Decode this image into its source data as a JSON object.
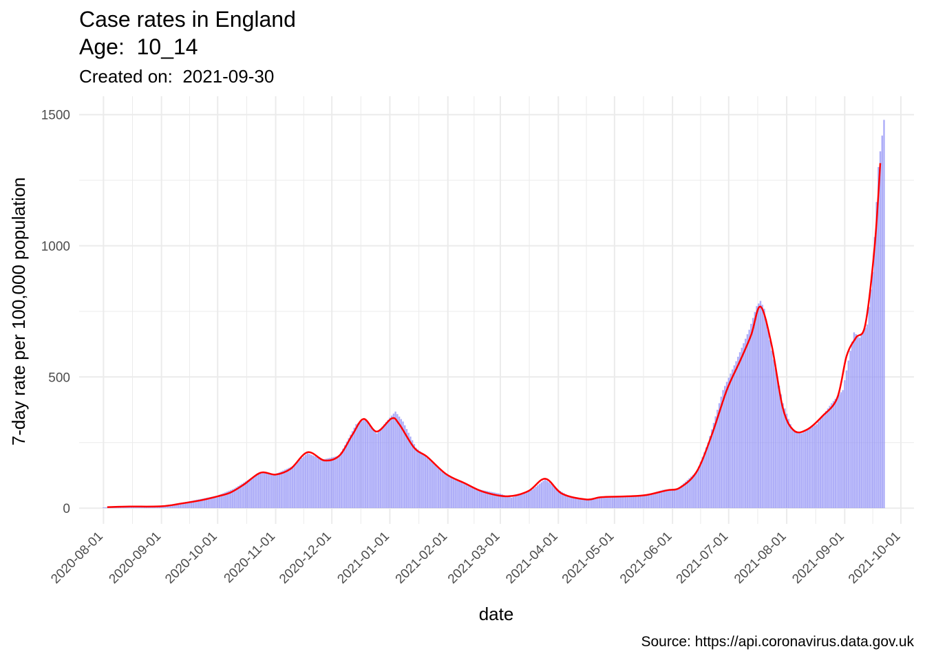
{
  "header": {
    "title_line1": "Case rates in England",
    "title_line2": "Age:  10_14",
    "subtitle": "Created on:  2021-09-30"
  },
  "caption": "Source: https://api.coronavirus.data.gov.uk",
  "colors": {
    "bars": "#8f8ff5",
    "smooth_line": "#ff0000",
    "grid": "#ebebeb"
  },
  "chart_data": {
    "type": "bar",
    "xlabel": "date",
    "ylabel": "7-day rate per 100,000 population",
    "ylim": [
      -60,
      1570
    ],
    "xlim": [
      "2020-07-19",
      "2021-10-08"
    ],
    "y_ticks": [
      0,
      500,
      1000,
      1500
    ],
    "x_ticks": [
      "2020-08-01",
      "2020-09-01",
      "2020-10-01",
      "2020-11-01",
      "2020-12-01",
      "2021-01-01",
      "2021-02-01",
      "2021-03-01",
      "2021-04-01",
      "2021-05-01",
      "2021-06-01",
      "2021-07-01",
      "2021-08-01",
      "2021-09-01",
      "2021-10-01"
    ],
    "grid": true,
    "legend": "none",
    "bar_anchors": [
      [
        "2020-08-01",
        3
      ],
      [
        "2020-08-20",
        5
      ],
      [
        "2020-09-01",
        8
      ],
      [
        "2020-09-15",
        25
      ],
      [
        "2020-10-01",
        48
      ],
      [
        "2020-10-10",
        75
      ],
      [
        "2020-10-20",
        120
      ],
      [
        "2020-10-25",
        135
      ],
      [
        "2020-11-01",
        130
      ],
      [
        "2020-11-10",
        160
      ],
      [
        "2020-11-18",
        210
      ],
      [
        "2020-11-26",
        185
      ],
      [
        "2020-12-05",
        200
      ],
      [
        "2020-12-14",
        320
      ],
      [
        "2020-12-19",
        340
      ],
      [
        "2020-12-25",
        285
      ],
      [
        "2021-01-01",
        345
      ],
      [
        "2021-01-04",
        368
      ],
      [
        "2021-01-08",
        330
      ],
      [
        "2021-01-15",
        230
      ],
      [
        "2021-01-22",
        185
      ],
      [
        "2021-02-01",
        125
      ],
      [
        "2021-02-15",
        75
      ],
      [
        "2021-03-01",
        55
      ],
      [
        "2021-03-07",
        40
      ],
      [
        "2021-03-18",
        70
      ],
      [
        "2021-03-25",
        110
      ],
      [
        "2021-04-01",
        70
      ],
      [
        "2021-04-08",
        40
      ],
      [
        "2021-04-16",
        35
      ],
      [
        "2021-04-25",
        42
      ],
      [
        "2021-05-08",
        45
      ],
      [
        "2021-05-18",
        50
      ],
      [
        "2021-05-27",
        70
      ],
      [
        "2021-06-04",
        75
      ],
      [
        "2021-06-14",
        140
      ],
      [
        "2021-06-20",
        250
      ],
      [
        "2021-06-28",
        450
      ],
      [
        "2021-07-05",
        560
      ],
      [
        "2021-07-12",
        680
      ],
      [
        "2021-07-16",
        770
      ],
      [
        "2021-07-18",
        790
      ],
      [
        "2021-07-20",
        760
      ],
      [
        "2021-07-24",
        600
      ],
      [
        "2021-07-30",
        400
      ],
      [
        "2021-08-04",
        300
      ],
      [
        "2021-08-09",
        285
      ],
      [
        "2021-08-17",
        320
      ],
      [
        "2021-08-25",
        400
      ],
      [
        "2021-08-31",
        450
      ],
      [
        "2021-09-04",
        600
      ],
      [
        "2021-09-06",
        670
      ],
      [
        "2021-09-09",
        650
      ],
      [
        "2021-09-13",
        700
      ],
      [
        "2021-09-16",
        900
      ],
      [
        "2021-09-19",
        1300
      ],
      [
        "2021-09-22",
        1480
      ]
    ],
    "smooth_line_points": [
      [
        "2020-08-03",
        4
      ],
      [
        "2020-08-15",
        6
      ],
      [
        "2020-09-01",
        7
      ],
      [
        "2020-09-12",
        18
      ],
      [
        "2020-09-22",
        30
      ],
      [
        "2020-10-01",
        45
      ],
      [
        "2020-10-08",
        60
      ],
      [
        "2020-10-15",
        90
      ],
      [
        "2020-10-24",
        135
      ],
      [
        "2020-11-01",
        128
      ],
      [
        "2020-11-09",
        150
      ],
      [
        "2020-11-18",
        213
      ],
      [
        "2020-11-27",
        182
      ],
      [
        "2020-12-05",
        200
      ],
      [
        "2020-12-12",
        280
      ],
      [
        "2020-12-18",
        340
      ],
      [
        "2020-12-25",
        292
      ],
      [
        "2021-01-02",
        342
      ],
      [
        "2021-01-06",
        320
      ],
      [
        "2021-01-14",
        230
      ],
      [
        "2021-01-21",
        195
      ],
      [
        "2021-01-31",
        130
      ],
      [
        "2021-02-10",
        95
      ],
      [
        "2021-02-20",
        62
      ],
      [
        "2021-03-05",
        45
      ],
      [
        "2021-03-16",
        65
      ],
      [
        "2021-03-25",
        112
      ],
      [
        "2021-04-03",
        55
      ],
      [
        "2021-04-16",
        33
      ],
      [
        "2021-04-24",
        42
      ],
      [
        "2021-05-08",
        45
      ],
      [
        "2021-05-18",
        50
      ],
      [
        "2021-05-29",
        68
      ],
      [
        "2021-06-05",
        78
      ],
      [
        "2021-06-14",
        140
      ],
      [
        "2021-06-22",
        280
      ],
      [
        "2021-06-30",
        450
      ],
      [
        "2021-07-07",
        560
      ],
      [
        "2021-07-13",
        660
      ],
      [
        "2021-07-18",
        768
      ],
      [
        "2021-07-24",
        620
      ],
      [
        "2021-07-30",
        380
      ],
      [
        "2021-08-05",
        295
      ],
      [
        "2021-08-12",
        300
      ],
      [
        "2021-08-20",
        350
      ],
      [
        "2021-08-28",
        420
      ],
      [
        "2021-09-02",
        580
      ],
      [
        "2021-09-07",
        650
      ],
      [
        "2021-09-12",
        700
      ],
      [
        "2021-09-17",
        1000
      ],
      [
        "2021-09-20",
        1315
      ]
    ]
  }
}
